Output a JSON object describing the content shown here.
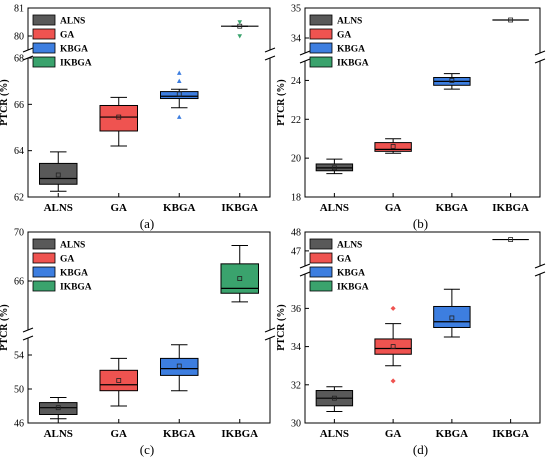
{
  "chart_data": [
    {
      "type": "box",
      "panel_label": "(a)",
      "ylabel": "PTCR (%)",
      "categories": [
        "ALNS",
        "GA",
        "KBGA",
        "IKBGA"
      ],
      "y_broken_axis": [
        {
          "ylim": [
            62,
            68
          ],
          "ticks": [
            62,
            64,
            66,
            68
          ]
        },
        {
          "ylim": [
            79.5,
            81
          ],
          "ticks": [
            80,
            81
          ]
        }
      ],
      "series": [
        {
          "name": "ALNS",
          "color": "#595959",
          "min": 62.25,
          "q1": 62.55,
          "median": 62.8,
          "q3": 63.45,
          "max": 63.95,
          "mean": 62.95,
          "outliers": []
        },
        {
          "name": "GA",
          "color": "#ef5350",
          "min": 64.2,
          "q1": 64.85,
          "median": 65.45,
          "q3": 65.95,
          "max": 66.3,
          "mean": 65.45,
          "outliers": []
        },
        {
          "name": "KBGA",
          "color": "#3d7ee0",
          "min": 65.85,
          "q1": 66.25,
          "median": 66.35,
          "q3": 66.55,
          "max": 66.65,
          "mean": 66.45,
          "outliers": [
            65.45,
            67.0,
            67.35
          ]
        },
        {
          "name": "IKBGA",
          "color": "#3aa36d",
          "min": 80.35,
          "q1": 80.35,
          "median": 80.35,
          "q3": 80.35,
          "max": 80.35,
          "mean": 80.35,
          "outliers": [
            80.0,
            80.5
          ]
        }
      ],
      "legend": {
        "position": "top-left",
        "entries": [
          "ALNS",
          "GA",
          "KBGA",
          "IKBGA"
        ]
      }
    },
    {
      "type": "box",
      "panel_label": "(b)",
      "ylabel": "PTCR (%)",
      "categories": [
        "ALNS",
        "GA",
        "KBGA",
        "IKBGA"
      ],
      "y_broken_axis": [
        {
          "ylim": [
            18,
            25
          ],
          "ticks": [
            18,
            20,
            22,
            24
          ]
        },
        {
          "ylim": [
            33.5,
            35
          ],
          "ticks": [
            34,
            35
          ]
        }
      ],
      "series": [
        {
          "name": "ALNS",
          "color": "#595959",
          "min": 19.2,
          "q1": 19.35,
          "median": 19.5,
          "q3": 19.7,
          "max": 19.95,
          "mean": 19.5,
          "outliers": []
        },
        {
          "name": "GA",
          "color": "#ef5350",
          "min": 20.25,
          "q1": 20.35,
          "median": 20.45,
          "q3": 20.8,
          "max": 21.0,
          "mean": 20.6,
          "outliers": []
        },
        {
          "name": "KBGA",
          "color": "#3d7ee0",
          "min": 23.55,
          "q1": 23.75,
          "median": 23.95,
          "q3": 24.15,
          "max": 24.35,
          "mean": 24.0,
          "outliers": []
        },
        {
          "name": "IKBGA",
          "color": "#3aa36d",
          "min": 34.6,
          "q1": 34.6,
          "median": 34.6,
          "q3": 34.6,
          "max": 34.6,
          "mean": 34.6,
          "outliers": []
        }
      ],
      "legend": {
        "position": "top-left",
        "entries": [
          "ALNS",
          "GA",
          "KBGA",
          "IKBGA"
        ]
      }
    },
    {
      "type": "box",
      "panel_label": "(c)",
      "ylabel": "PTCR (%)",
      "categories": [
        "ALNS",
        "GA",
        "KBGA",
        "IKBGA"
      ],
      "y_broken_axis": [
        {
          "ylim": [
            46,
            56
          ],
          "ticks": [
            46,
            50,
            54
          ]
        },
        {
          "ylim": [
            62,
            70
          ],
          "ticks": [
            66,
            70
          ]
        }
      ],
      "series": [
        {
          "name": "ALNS",
          "color": "#595959",
          "min": 46.5,
          "q1": 47.0,
          "median": 47.8,
          "q3": 48.4,
          "max": 49.0,
          "mean": 47.8,
          "outliers": []
        },
        {
          "name": "GA",
          "color": "#ef5350",
          "min": 48.0,
          "q1": 49.8,
          "median": 50.5,
          "q3": 52.2,
          "max": 53.6,
          "mean": 51.0,
          "outliers": []
        },
        {
          "name": "KBGA",
          "color": "#3d7ee0",
          "min": 49.8,
          "q1": 51.6,
          "median": 52.4,
          "q3": 53.6,
          "max": 55.2,
          "mean": 52.7,
          "outliers": []
        },
        {
          "name": "IKBGA",
          "color": "#3aa36d",
          "min": 64.3,
          "q1": 65.0,
          "median": 65.4,
          "q3": 67.4,
          "max": 68.9,
          "mean": 66.2,
          "outliers": []
        }
      ],
      "legend": {
        "position": "top-left",
        "entries": [
          "ALNS",
          "GA",
          "KBGA",
          "IKBGA"
        ]
      }
    },
    {
      "type": "box",
      "panel_label": "(d)",
      "ylabel": "PTCR (%)",
      "categories": [
        "ALNS",
        "GA",
        "KBGA",
        "IKBGA"
      ],
      "y_broken_axis": [
        {
          "ylim": [
            30,
            37.8
          ],
          "ticks": [
            30,
            32,
            34,
            36
          ]
        },
        {
          "ylim": [
            46.2,
            48
          ],
          "ticks": [
            47,
            48
          ]
        }
      ],
      "series": [
        {
          "name": "ALNS",
          "color": "#595959",
          "min": 30.6,
          "q1": 30.9,
          "median": 31.3,
          "q3": 31.7,
          "max": 31.9,
          "mean": 31.3,
          "outliers": []
        },
        {
          "name": "GA",
          "color": "#ef5350",
          "min": 33.0,
          "q1": 33.6,
          "median": 33.9,
          "q3": 34.4,
          "max": 35.2,
          "mean": 34.0,
          "outliers": [
            32.2,
            36.0
          ]
        },
        {
          "name": "KBGA",
          "color": "#3d7ee0",
          "min": 34.5,
          "q1": 35.0,
          "median": 35.3,
          "q3": 36.1,
          "max": 37.0,
          "mean": 35.5,
          "outliers": []
        },
        {
          "name": "IKBGA",
          "color": "#3aa36d",
          "min": 47.6,
          "q1": 47.6,
          "median": 47.6,
          "q3": 47.6,
          "max": 47.6,
          "mean": 47.6,
          "outliers": []
        }
      ],
      "legend": {
        "position": "top-left",
        "entries": [
          "ALNS",
          "GA",
          "KBGA",
          "IKBGA"
        ]
      }
    }
  ]
}
